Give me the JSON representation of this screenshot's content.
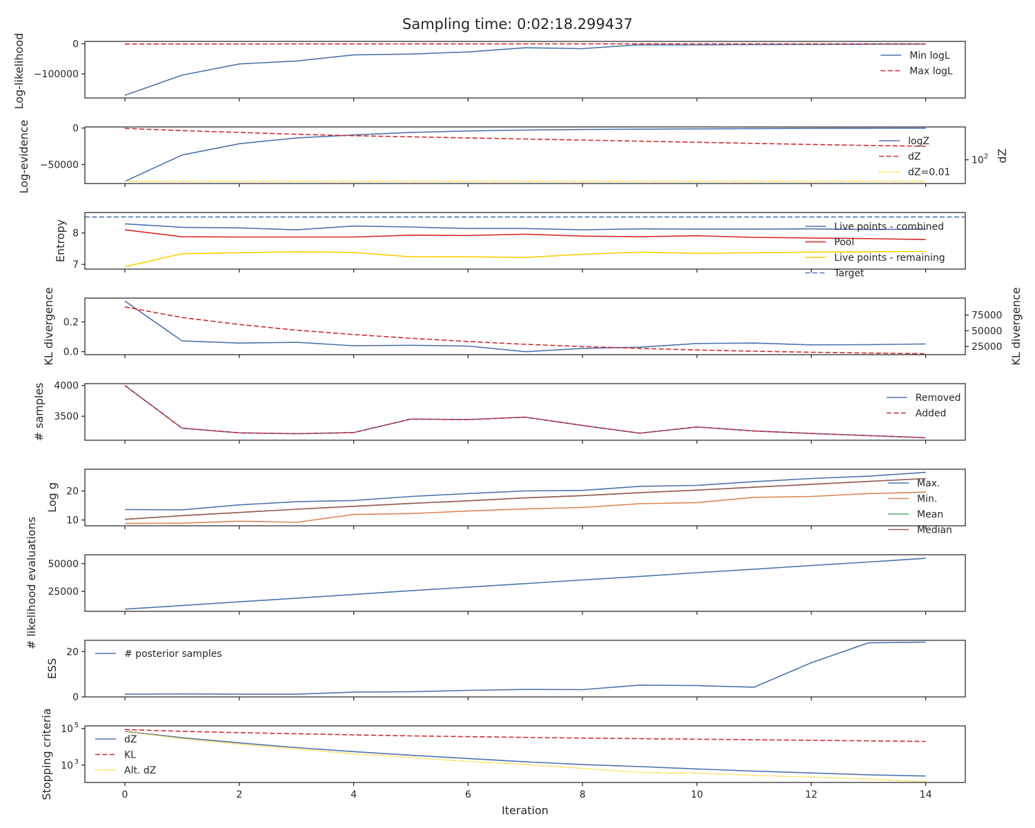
{
  "title": "Sampling time: 0:02:18.299437",
  "xlabel": "Iteration",
  "x_ticks": [
    0,
    2,
    4,
    6,
    8,
    10,
    12,
    14
  ],
  "colors": {
    "blue": "#4c72b0",
    "red": "#d62728",
    "gold": "#ffcc00",
    "green": "#55a868",
    "orange": "#dd8452",
    "brown": "#a05a57",
    "axis": "#262626"
  },
  "chart_data": [
    {
      "id": "loglike",
      "type": "line",
      "ylabel": "Log-likelihood",
      "ylim": [
        -180000,
        8000
      ],
      "yticks": [
        {
          "v": 0,
          "label": "0"
        },
        {
          "v": -100000,
          "label": "−100000"
        }
      ],
      "legend": {
        "loc": "right",
        "size": 14
      },
      "series": [
        {
          "name": "Min logL",
          "color": "blue",
          "style": "solid",
          "values": [
            -171000,
            -104000,
            -67000,
            -57000,
            -37000,
            -34000,
            -27000,
            -13000,
            -16000,
            -3000,
            -3500,
            -2500,
            -2000,
            -1500,
            -1000
          ]
        },
        {
          "name": "Max logL",
          "color": "red",
          "style": "dashed",
          "values": [
            -800,
            -700,
            -600,
            -500,
            -400,
            -350,
            -300,
            -250,
            -200,
            -150,
            -120,
            -100,
            -80,
            -60,
            -50
          ]
        }
      ]
    },
    {
      "id": "logz",
      "type": "line",
      "ylabel": "Log-evidence",
      "ylabel_right": "dZ",
      "ylim": [
        -76000,
        1500
      ],
      "yticks": [
        {
          "v": 0,
          "label": "0"
        },
        {
          "v": -50000,
          "label": "−50000"
        }
      ],
      "right_ticks": [
        {
          "pos": 0.58,
          "label": "10",
          "sup": "2"
        }
      ],
      "legend": {
        "loc": "right",
        "size": 14
      },
      "series": [
        {
          "name": "logZ",
          "color": "blue",
          "style": "solid",
          "values": [
            -73000,
            -37000,
            -21500,
            -13500,
            -9500,
            -6000,
            -4000,
            -2800,
            -2000,
            -1500,
            -1100,
            -800,
            -500,
            -300,
            -200
          ]
        },
        {
          "name": "dZ",
          "color": "red",
          "style": "dashed",
          "values": [
            -500,
            -3500,
            -6000,
            -8500,
            -10500,
            -12000,
            -13500,
            -15000,
            -16500,
            -18000,
            -19500,
            -21000,
            -22500,
            -23800,
            -25000
          ]
        },
        {
          "name": "dZ=0.01",
          "color": "gold",
          "style": "dotted",
          "values": [
            -73000,
            -73000,
            -73000,
            -73000,
            -73000,
            -73000,
            -73000,
            -73000,
            -73000,
            -73000,
            -73000,
            -73000,
            -73000,
            -73000,
            -73000
          ]
        }
      ]
    },
    {
      "id": "entropy",
      "type": "line",
      "ylabel": "Entropy",
      "ylim": [
        6.85,
        8.65
      ],
      "yticks": [
        {
          "v": 8,
          "label": "8"
        },
        {
          "v": 7,
          "label": "7"
        }
      ],
      "legend": {
        "loc": "right",
        "size": 14
      },
      "series": [
        {
          "name": "Live points - combined",
          "color": "blue",
          "style": "solid",
          "values": [
            8.29,
            8.18,
            8.16,
            8.1,
            8.22,
            8.19,
            8.14,
            8.14,
            8.1,
            8.13,
            8.12,
            8.12,
            8.13,
            8.11,
            8.12
          ]
        },
        {
          "name": "Pool",
          "color": "red",
          "style": "solid",
          "values": [
            8.1,
            7.88,
            7.87,
            7.87,
            7.87,
            7.93,
            7.92,
            7.96,
            7.9,
            7.88,
            7.91,
            7.86,
            7.84,
            7.82,
            7.79
          ]
        },
        {
          "name": "Live points - remaining",
          "color": "gold",
          "style": "solid",
          "values": [
            6.93,
            7.34,
            7.37,
            7.4,
            7.38,
            7.24,
            7.24,
            7.22,
            7.32,
            7.39,
            7.35,
            7.37,
            7.39,
            7.4,
            7.41
          ]
        },
        {
          "name": "Target",
          "color": "blue",
          "style": "dashed",
          "full_width": true,
          "values": [
            8.51,
            8.51,
            8.51,
            8.51,
            8.51,
            8.51,
            8.51,
            8.51,
            8.51,
            8.51,
            8.51,
            8.51,
            8.51,
            8.51,
            8.51
          ]
        }
      ]
    },
    {
      "id": "kl",
      "type": "line",
      "ylabel": "KL divergence",
      "ylabel_right": "KL divergence",
      "ylim": [
        -0.02,
        0.36
      ],
      "yticks": [
        {
          "v": 0.2,
          "label": "0.2"
        },
        {
          "v": 0.0,
          "label": "0.0"
        }
      ],
      "right_ylim": [
        12000,
        102000
      ],
      "right_ticks": [
        {
          "v": 75000,
          "label": "75000"
        },
        {
          "v": 50000,
          "label": "50000"
        },
        {
          "v": 25000,
          "label": "25000"
        }
      ],
      "legend": null,
      "series": [
        {
          "name": "",
          "color": "blue",
          "style": "solid",
          "values": [
            0.34,
            0.072,
            0.058,
            0.063,
            0.04,
            0.043,
            0.038,
            0.0,
            0.022,
            0.03,
            0.055,
            0.058,
            0.046,
            0.047,
            0.052
          ]
        },
        {
          "name": "",
          "color": "red",
          "style": "dashed",
          "axis": "right",
          "values": [
            88000,
            71000,
            60000,
            51000,
            44000,
            38000,
            33000,
            28500,
            25000,
            22000,
            19500,
            17500,
            15800,
            14500,
            13500
          ]
        }
      ]
    },
    {
      "id": "samples",
      "type": "line",
      "ylabel": "# samples",
      "ylim": [
        3110,
        4030
      ],
      "yticks": [
        {
          "v": 4000,
          "label": "4000"
        },
        {
          "v": 3500,
          "label": "3500"
        }
      ],
      "legend": {
        "loc": "right",
        "size": 14
      },
      "series": [
        {
          "name": "Removed",
          "color": "blue",
          "style": "solid",
          "values": [
            4000,
            3305,
            3230,
            3215,
            3235,
            3455,
            3445,
            3485,
            3350,
            3225,
            3325,
            3260,
            3220,
            3185,
            3150
          ]
        },
        {
          "name": "Added",
          "color": "red",
          "style": "dashed",
          "values": [
            4000,
            3305,
            3230,
            3215,
            3235,
            3455,
            3445,
            3485,
            3350,
            3225,
            3325,
            3260,
            3220,
            3185,
            3150
          ]
        }
      ]
    },
    {
      "id": "logg",
      "type": "line",
      "ylabel": "Log g",
      "ylim": [
        8,
        27.5
      ],
      "yticks": [
        {
          "v": 20,
          "label": "20"
        },
        {
          "v": 10,
          "label": "10"
        }
      ],
      "legend": {
        "loc": "right",
        "size": 14
      },
      "series": [
        {
          "name": "Max.",
          "color": "blue",
          "style": "solid",
          "values": [
            13.6,
            13.5,
            15.2,
            16.3,
            16.7,
            18.1,
            19.1,
            20.0,
            20.2,
            21.6,
            21.9,
            23.2,
            24.3,
            25.1,
            26.4
          ]
        },
        {
          "name": "Min.",
          "color": "orange",
          "style": "solid",
          "values": [
            8.8,
            8.9,
            9.6,
            9.2,
            11.9,
            12.2,
            13.1,
            13.8,
            14.3,
            15.6,
            16.0,
            17.8,
            18.1,
            19.1,
            19.6
          ]
        },
        {
          "name": "Mean",
          "color": "green",
          "style": "solid",
          "values": [
            10.2,
            11.5,
            12.6,
            13.7,
            14.7,
            15.7,
            16.6,
            17.6,
            18.4,
            19.4,
            20.3,
            21.3,
            22.3,
            23.3,
            24.3
          ]
        },
        {
          "name": "Median",
          "color": "brown",
          "style": "solid",
          "values": [
            10.2,
            11.5,
            12.6,
            13.7,
            14.7,
            15.7,
            16.6,
            17.6,
            18.4,
            19.4,
            20.3,
            21.3,
            22.3,
            23.3,
            24.3
          ]
        }
      ]
    },
    {
      "id": "likeval",
      "type": "line",
      "ylabel": "# likelihood evaluations",
      "ylim": [
        7000,
        58000
      ],
      "yticks": [
        {
          "v": 50000,
          "label": "50000"
        },
        {
          "v": 25000,
          "label": "25000"
        }
      ],
      "legend": null,
      "series": [
        {
          "name": "",
          "color": "blue",
          "style": "solid",
          "values": [
            9000,
            12200,
            15600,
            18900,
            22200,
            25600,
            28800,
            32000,
            35300,
            38500,
            41800,
            45000,
            48300,
            51500,
            54800
          ]
        }
      ]
    },
    {
      "id": "ess",
      "type": "line",
      "ylabel": "ESS",
      "ylim": [
        0,
        25
      ],
      "yticks": [
        {
          "v": 20,
          "label": "20"
        },
        {
          "v": 0,
          "label": "0"
        }
      ],
      "legend": {
        "loc": "left",
        "size": 14
      },
      "series": [
        {
          "name": "# posterior samples",
          "color": "blue",
          "style": "solid",
          "values": [
            1.2,
            1.3,
            1.2,
            1.2,
            2.1,
            2.3,
            2.9,
            3.3,
            3.2,
            5.2,
            5.0,
            4.3,
            15.1,
            23.9,
            24.2
          ]
        }
      ]
    },
    {
      "id": "stop",
      "type": "line",
      "ylabel": "Stopping criteria",
      "ylim_log": [
        2.05,
        5.15
      ],
      "yticks": [
        {
          "v": 5,
          "label": "10",
          "sup": "5"
        },
        {
          "v": 3,
          "label": "10",
          "sup": "3"
        }
      ],
      "legend": {
        "loc": "left",
        "size": 14
      },
      "series": [
        {
          "name": "dZ",
          "color": "blue",
          "style": "solid",
          "log_values": [
            4.85,
            4.5,
            4.22,
            3.96,
            3.74,
            3.54,
            3.36,
            3.18,
            3.03,
            2.92,
            2.79,
            2.67,
            2.57,
            2.47,
            2.4
          ]
        },
        {
          "name": "KL",
          "color": "red",
          "style": "dashed",
          "log_values": [
            4.95,
            4.85,
            4.78,
            4.72,
            4.66,
            4.6,
            4.56,
            4.52,
            4.48,
            4.45,
            4.42,
            4.39,
            4.36,
            4.33,
            4.3
          ]
        },
        {
          "name": "Alt. dZ",
          "color": "gold",
          "style": "dotted",
          "log_values": [
            4.85,
            4.45,
            4.15,
            3.88,
            3.62,
            3.42,
            3.2,
            3.04,
            2.82,
            2.6,
            2.56,
            2.44,
            2.34,
            2.23,
            2.1
          ]
        }
      ]
    }
  ]
}
